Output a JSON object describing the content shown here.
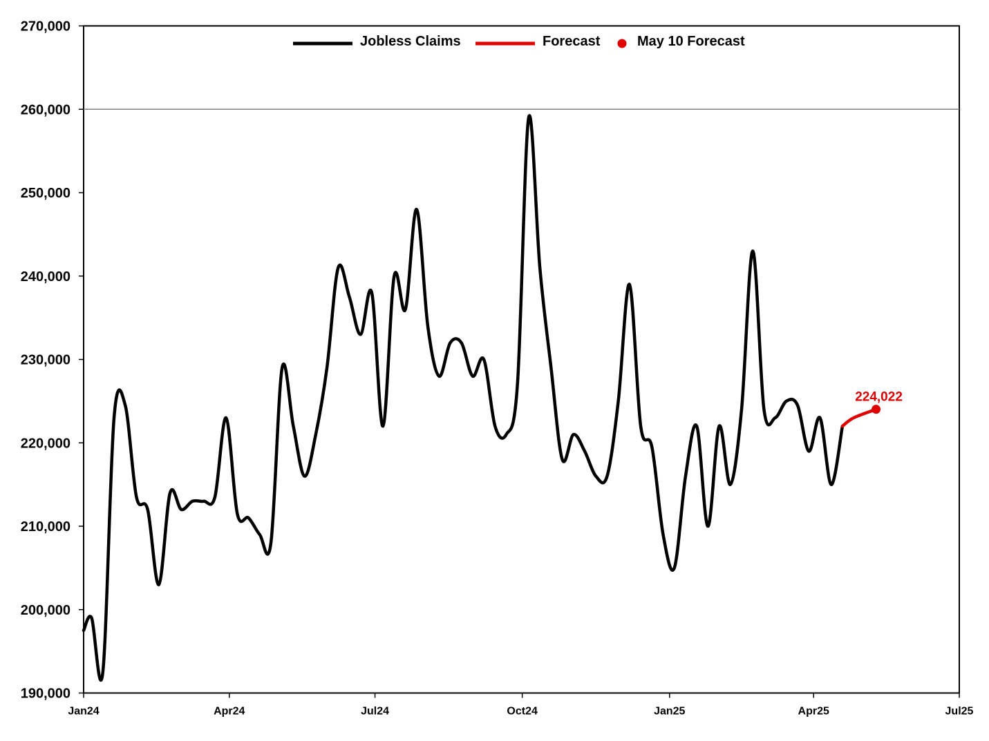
{
  "chart_data": {
    "type": "line",
    "title": "",
    "xlabel": "",
    "ylabel": "",
    "ylim": [
      190000,
      270000
    ],
    "yticks": [
      {
        "value": 190000,
        "label": "190,000"
      },
      {
        "value": 200000,
        "label": "200,000"
      },
      {
        "value": 210000,
        "label": "210,000"
      },
      {
        "value": 220000,
        "label": "220,000"
      },
      {
        "value": 230000,
        "label": "230,000"
      },
      {
        "value": 240000,
        "label": "240,000"
      },
      {
        "value": 250000,
        "label": "250,000"
      },
      {
        "value": 260000,
        "label": "260,000"
      },
      {
        "value": 270000,
        "label": "270,000"
      }
    ],
    "xlim": [
      "2024-01-01",
      "2025-07-01"
    ],
    "xticks": [
      {
        "date": "2024-01-01",
        "label": "Jan24"
      },
      {
        "date": "2024-04-01",
        "label": "Apr24"
      },
      {
        "date": "2024-07-01",
        "label": "Jul24"
      },
      {
        "date": "2024-10-01",
        "label": "Oct24"
      },
      {
        "date": "2025-01-01",
        "label": "Jan25"
      },
      {
        "date": "2025-04-01",
        "label": "Apr25"
      },
      {
        "date": "2025-07-01",
        "label": "Jul25"
      }
    ],
    "reference_line": {
      "value": 260000,
      "color": "#808080"
    },
    "grid": false,
    "legend_position": "top-center",
    "legend": [
      {
        "label": "Jobless Claims",
        "marker": "line",
        "color": "#000000"
      },
      {
        "label": "Forecast",
        "marker": "line",
        "color": "#e00000"
      },
      {
        "label": "May 10 Forecast",
        "marker": "dot",
        "color": "#e00000"
      }
    ],
    "series": [
      {
        "name": "Jobless Claims",
        "color": "#000000",
        "points": [
          [
            "2024-01-01",
            197500
          ],
          [
            "2024-01-06",
            199000
          ],
          [
            "2024-01-13",
            192500
          ],
          [
            "2024-01-20",
            223000
          ],
          [
            "2024-01-27",
            224500
          ],
          [
            "2024-02-03",
            213500
          ],
          [
            "2024-02-10",
            212000
          ],
          [
            "2024-02-17",
            203000
          ],
          [
            "2024-02-24",
            214000
          ],
          [
            "2024-03-02",
            212000
          ],
          [
            "2024-03-09",
            213000
          ],
          [
            "2024-03-16",
            213000
          ],
          [
            "2024-03-23",
            213500
          ],
          [
            "2024-03-30",
            223000
          ],
          [
            "2024-04-06",
            211500
          ],
          [
            "2024-04-13",
            211000
          ],
          [
            "2024-04-20",
            209000
          ],
          [
            "2024-04-27",
            208000
          ],
          [
            "2024-05-04",
            229000
          ],
          [
            "2024-05-11",
            222000
          ],
          [
            "2024-05-18",
            216000
          ],
          [
            "2024-05-25",
            221000
          ],
          [
            "2024-06-01",
            229000
          ],
          [
            "2024-06-08",
            241000
          ],
          [
            "2024-06-15",
            237500
          ],
          [
            "2024-06-22",
            233000
          ],
          [
            "2024-06-29",
            238000
          ],
          [
            "2024-07-06",
            222000
          ],
          [
            "2024-07-13",
            240000
          ],
          [
            "2024-07-20",
            236000
          ],
          [
            "2024-07-27",
            248000
          ],
          [
            "2024-08-03",
            234000
          ],
          [
            "2024-08-10",
            228000
          ],
          [
            "2024-08-17",
            232000
          ],
          [
            "2024-08-24",
            232000
          ],
          [
            "2024-08-31",
            228000
          ],
          [
            "2024-09-07",
            230000
          ],
          [
            "2024-09-14",
            222000
          ],
          [
            "2024-09-21",
            221000
          ],
          [
            "2024-09-28",
            227000
          ],
          [
            "2024-10-05",
            259000
          ],
          [
            "2024-10-12",
            241000
          ],
          [
            "2024-10-19",
            229000
          ],
          [
            "2024-10-26",
            218000
          ],
          [
            "2024-11-02",
            221000
          ],
          [
            "2024-11-09",
            219000
          ],
          [
            "2024-11-16",
            216000
          ],
          [
            "2024-11-23",
            216000
          ],
          [
            "2024-11-30",
            225000
          ],
          [
            "2024-12-07",
            239000
          ],
          [
            "2024-12-14",
            222000
          ],
          [
            "2024-12-21",
            219500
          ],
          [
            "2024-12-28",
            209000
          ],
          [
            "2025-01-04",
            205000
          ],
          [
            "2025-01-11",
            216000
          ],
          [
            "2025-01-18",
            222000
          ],
          [
            "2025-01-25",
            210000
          ],
          [
            "2025-02-01",
            222000
          ],
          [
            "2025-02-08",
            215000
          ],
          [
            "2025-02-15",
            224000
          ],
          [
            "2025-02-22",
            243000
          ],
          [
            "2025-03-01",
            224000
          ],
          [
            "2025-03-08",
            223000
          ],
          [
            "2025-03-15",
            225000
          ],
          [
            "2025-03-22",
            224500
          ],
          [
            "2025-03-29",
            219000
          ],
          [
            "2025-04-05",
            223000
          ],
          [
            "2025-04-12",
            215000
          ],
          [
            "2025-04-19",
            222000
          ]
        ]
      },
      {
        "name": "Forecast",
        "color": "#e00000",
        "points": [
          [
            "2025-04-19",
            222000
          ],
          [
            "2025-04-26",
            223000
          ],
          [
            "2025-05-10",
            224022
          ]
        ]
      },
      {
        "name": "May 10 Forecast",
        "color": "#e00000",
        "marker": "dot",
        "points": [
          [
            "2025-05-10",
            224022
          ]
        ],
        "data_label": "224,022"
      }
    ]
  }
}
